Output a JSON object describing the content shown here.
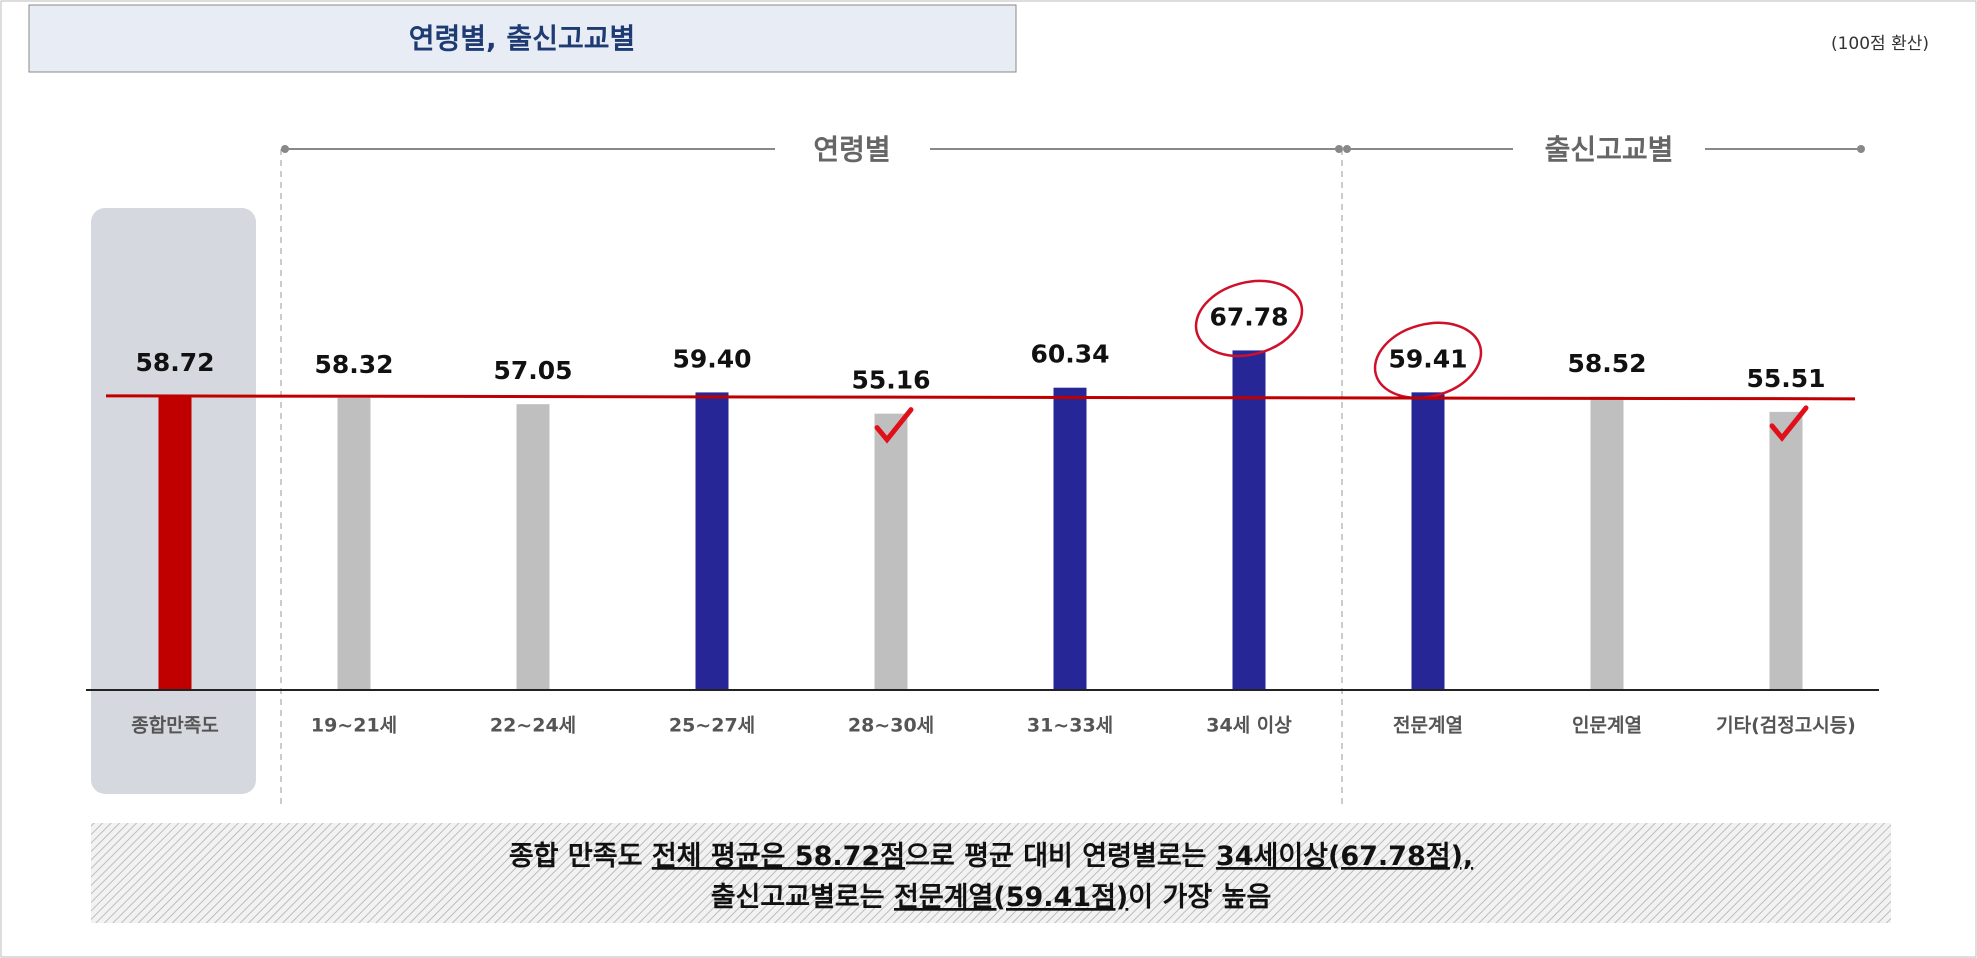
{
  "chart_data": {
    "type": "bar",
    "title": "연령별, 출신고교별",
    "note": "(100점 환산)",
    "groups": [
      {
        "label": "연령별"
      },
      {
        "label": "출신고교별"
      }
    ],
    "categories": [
      "종합만족도",
      "19~21세",
      "22~24세",
      "25~27세",
      "28~30세",
      "31~33세",
      "34세 이상",
      "전문계열",
      "인문계열",
      "기타(검정고시등)"
    ],
    "values": [
      58.72,
      58.32,
      57.05,
      59.4,
      55.16,
      60.34,
      67.78,
      59.41,
      58.52,
      55.51
    ],
    "value_labels": [
      "58.72",
      "58.32",
      "57.05",
      "59.40",
      "55.16",
      "60.34",
      "67.78",
      "59.41",
      "58.52",
      "55.51"
    ],
    "colors": [
      "#c00000",
      "#bfbfbf",
      "#bfbfbf",
      "#262696",
      "#bfbfbf",
      "#262696",
      "#262696",
      "#262696",
      "#bfbfbf",
      "#bfbfbf"
    ],
    "markers": [
      null,
      null,
      null,
      null,
      "check",
      null,
      "circle",
      "circle",
      null,
      "check"
    ],
    "average_line_color": "#c00000",
    "ylim": [
      0,
      100
    ],
    "summary": [
      [
        {
          "text": "종합 만족도 ",
          "underline": false
        },
        {
          "text": "전체 평균은 58.72점",
          "underline": true
        },
        {
          "text": "으로 평균 대비 연령별로는 ",
          "underline": false
        },
        {
          "text": "34세이상(67.78점),",
          "underline": true
        }
      ],
      [
        {
          "text": "출신고교별로는 ",
          "underline": false
        },
        {
          "text": "전문계열(59.41점)",
          "underline": true
        },
        {
          "text": "이 가장 높음",
          "underline": false
        }
      ]
    ]
  }
}
